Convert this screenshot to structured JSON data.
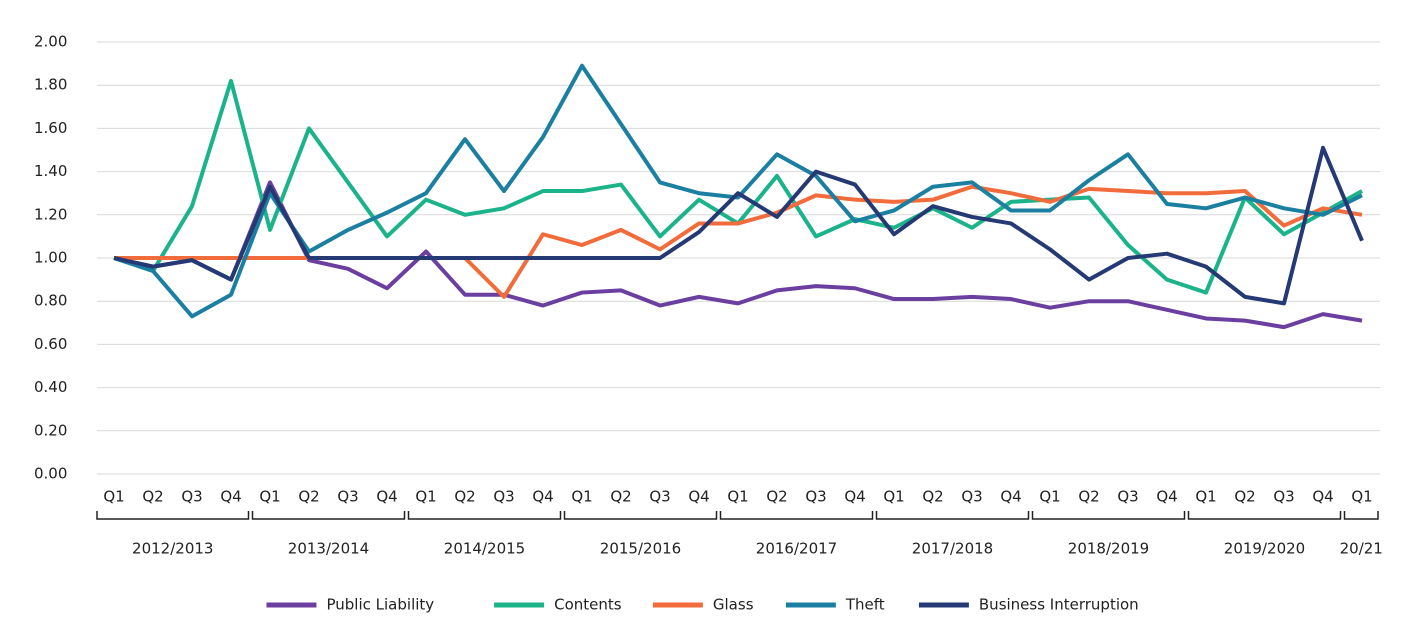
{
  "chart_data": {
    "type": "line",
    "categories": [
      "Q1",
      "Q2",
      "Q3",
      "Q4",
      "Q1",
      "Q2",
      "Q3",
      "Q4",
      "Q1",
      "Q2",
      "Q3",
      "Q4",
      "Q1",
      "Q2",
      "Q3",
      "Q4",
      "Q1",
      "Q2",
      "Q3",
      "Q4",
      "Q1",
      "Q2",
      "Q3",
      "Q4",
      "Q1",
      "Q2",
      "Q3",
      "Q4",
      "Q1",
      "Q2",
      "Q3",
      "Q4",
      "Q1"
    ],
    "category_groups": [
      "2012/2013",
      "2013/2014",
      "2014/2015",
      "2015/2016",
      "2016/2017",
      "2017/2018",
      "2018/2019",
      "2019/2020",
      "20/21"
    ],
    "ylim": [
      0,
      2
    ],
    "yticks": [
      {
        "value": 0,
        "label": "0.00"
      },
      {
        "value": 0.2,
        "label": "0.20"
      },
      {
        "value": 0.4,
        "label": "0.40"
      },
      {
        "value": 0.6,
        "label": "0.60"
      },
      {
        "value": 0.8,
        "label": "0.80"
      },
      {
        "value": 1,
        "label": "1.00"
      },
      {
        "value": 1.2,
        "label": "1.20"
      },
      {
        "value": 1.4,
        "label": "1.40"
      },
      {
        "value": 1.6,
        "label": "1.60"
      },
      {
        "value": 1.8,
        "label": "1.80"
      },
      {
        "value": 2,
        "label": "2.00"
      }
    ],
    "grid": true,
    "legend": "bottom",
    "series": [
      {
        "name": "Public Liability",
        "color": "#6b3fa0",
        "values": [
          1.0,
          0.96,
          0.99,
          0.9,
          1.35,
          0.99,
          0.95,
          0.86,
          1.03,
          0.83,
          0.83,
          0.78,
          0.84,
          0.85,
          0.78,
          0.82,
          0.79,
          0.85,
          0.87,
          0.86,
          0.81,
          0.81,
          0.82,
          0.81,
          0.77,
          0.8,
          0.8,
          0.76,
          0.72,
          0.71,
          0.68,
          0.74,
          0.71
        ]
      },
      {
        "name": "Contents",
        "color": "#1bb38a",
        "values": [
          1.0,
          0.94,
          1.24,
          1.82,
          1.13,
          1.6,
          1.35,
          1.1,
          1.27,
          1.2,
          1.23,
          1.31,
          1.31,
          1.34,
          1.1,
          1.27,
          1.16,
          1.38,
          1.1,
          1.18,
          1.14,
          1.23,
          1.14,
          1.26,
          1.27,
          1.28,
          1.06,
          0.9,
          0.84,
          1.28,
          1.11,
          1.21,
          1.31
        ]
      },
      {
        "name": "Glass",
        "color": "#f26b3a",
        "values": [
          1.0,
          1.0,
          1.0,
          1.0,
          1.0,
          1.0,
          1.0,
          1.0,
          1.0,
          1.0,
          0.82,
          1.11,
          1.06,
          1.13,
          1.04,
          1.16,
          1.16,
          1.21,
          1.29,
          1.27,
          1.26,
          1.27,
          1.33,
          1.3,
          1.26,
          1.32,
          1.31,
          1.3,
          1.3,
          1.31,
          1.15,
          1.23,
          1.2
        ]
      },
      {
        "name": "Theft",
        "color": "#1a7fa0",
        "values": [
          1.0,
          0.94,
          0.73,
          0.83,
          1.3,
          1.03,
          1.13,
          1.21,
          1.3,
          1.55,
          1.31,
          1.56,
          1.89,
          1.62,
          1.35,
          1.3,
          1.28,
          1.48,
          1.38,
          1.17,
          1.22,
          1.33,
          1.35,
          1.22,
          1.22,
          1.36,
          1.48,
          1.25,
          1.23,
          1.28,
          1.23,
          1.2,
          1.29
        ]
      },
      {
        "name": "Business Interruption",
        "color": "#253a74",
        "values": [
          1.0,
          0.96,
          0.99,
          0.9,
          1.33,
          1.0,
          1.0,
          1.0,
          1.0,
          1.0,
          1.0,
          1.0,
          1.0,
          1.0,
          1.0,
          1.12,
          1.3,
          1.19,
          1.4,
          1.34,
          1.11,
          1.24,
          1.19,
          1.16,
          1.04,
          0.9,
          1.0,
          1.02,
          0.96,
          0.82,
          0.79,
          1.51,
          1.08
        ]
      }
    ]
  }
}
